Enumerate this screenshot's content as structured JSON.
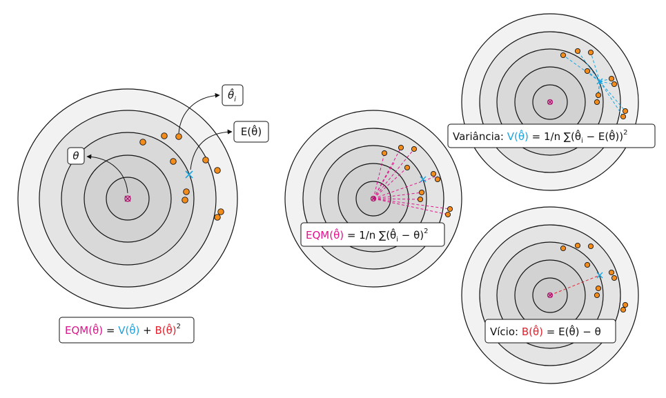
{
  "colors": {
    "eqm": "#e0138c",
    "variance": "#1aa3de",
    "bias": "#e0212e",
    "shot": "#f28c1c",
    "center_marker": "#b0106e"
  },
  "labels": {
    "theta": "θ",
    "theta_hat_i": "θ̂",
    "theta_hat_i_sub": "i",
    "e_theta_hat": "E(θ̂)"
  },
  "formulas": {
    "main": {
      "eqm": "EQM(θ̂)",
      "eq": " = ",
      "var": "V(θ̂)",
      "plus": " + ",
      "bias": "B(θ̂)",
      "sup": "2"
    },
    "eqm": {
      "lhs": "EQM(θ̂)",
      "rhs": " = 1/n ∑(θ̂",
      "sub": "i",
      "rhs2": " − θ)",
      "sup": "2"
    },
    "variance": {
      "name": "Variância: ",
      "lhs": "V(θ̂)",
      "rhs": " = 1/n ∑(θ̂",
      "sub": "i",
      "rhs2": " − E(θ̂))",
      "sup": "2"
    },
    "bias": {
      "name": "Vício: ",
      "lhs": "B(θ̂)",
      "rhs": " = E(θ̂) − θ"
    }
  }
}
